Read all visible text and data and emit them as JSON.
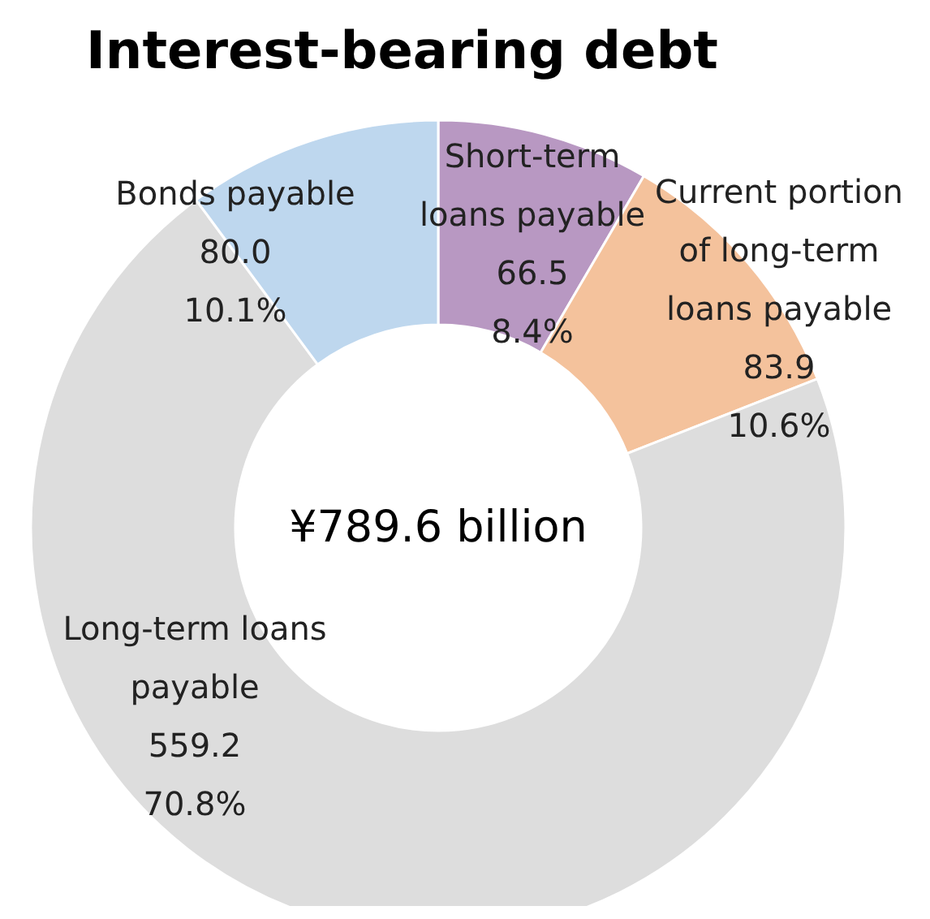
{
  "chart_data": {
    "type": "donut",
    "title": "Interest-bearing debt",
    "categories": [
      "Short-term\nloans payable",
      "Current portion\nof long-term\nloans payable",
      "Long-term loans\npayable",
      "Bonds payable"
    ],
    "values": [
      66.5,
      83.9,
      559.2,
      80.0
    ],
    "value_labels": [
      "66.5\n8.4%",
      "83.9\n10.6%",
      "559.2\n70.8%",
      "80.0\n10.1%"
    ],
    "colors": [
      "#b898c2",
      "#f4c29c",
      "#dddddd",
      "#bed7ee"
    ],
    "annotations": [
      "¥789.6 billion"
    ],
    "legend": false
  }
}
